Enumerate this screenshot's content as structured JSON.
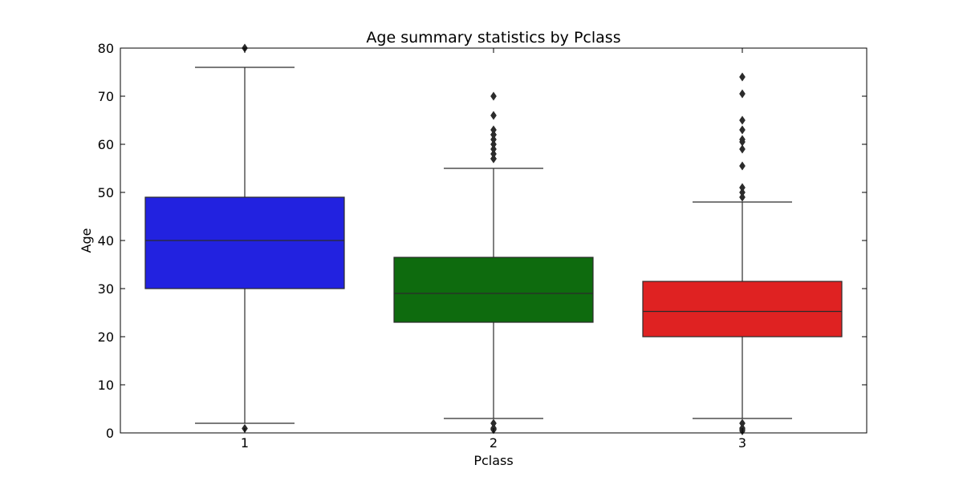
{
  "chart_data": {
    "type": "box",
    "title": "Age summary statistics by Pclass",
    "xlabel": "Pclass",
    "ylabel": "Age",
    "ylim": [
      0,
      80
    ],
    "yticks": [
      "0",
      "10",
      "20",
      "30",
      "40",
      "50",
      "60",
      "70",
      "80"
    ],
    "categories": [
      "1",
      "2",
      "3"
    ],
    "grid": false,
    "boxes": [
      {
        "category": "1",
        "color": "#2222e0",
        "whisker_low": 2,
        "q1": 30,
        "median": 40,
        "q3": 49,
        "whisker_high": 76,
        "outliers": [
          0.92,
          80
        ]
      },
      {
        "category": "2",
        "color": "#0e6b0e",
        "whisker_low": 3,
        "q1": 23,
        "median": 29,
        "q3": 36.5,
        "whisker_high": 55,
        "outliers": [
          0.67,
          0.83,
          1,
          2,
          57,
          57,
          58,
          59,
          60,
          61,
          62,
          62,
          63,
          66,
          70
        ]
      },
      {
        "category": "3",
        "color": "#df2222",
        "whisker_low": 3,
        "q1": 20,
        "median": 25.25,
        "q3": 31.5,
        "whisker_high": 48,
        "outliers": [
          0.42,
          0.75,
          1,
          2,
          49,
          50,
          51,
          55.5,
          59,
          60.5,
          61,
          63,
          65,
          70.5,
          74
        ]
      }
    ]
  }
}
